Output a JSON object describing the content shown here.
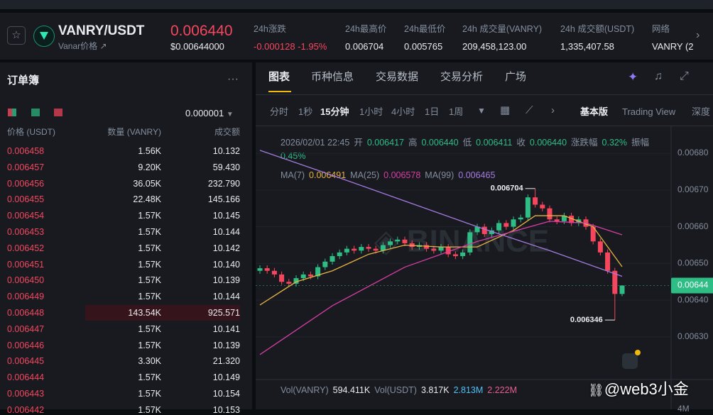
{
  "header": {
    "symbol": "VANRY/USDT",
    "sub": "Vanar价格 ↗",
    "price": "0.006440",
    "price_usd": "$0.00644000",
    "stats": [
      {
        "label": "24h涨跌",
        "value": "-0.000128 -1.95%"
      },
      {
        "label": "24h最高价",
        "value": "0.006704"
      },
      {
        "label": "24h最低价",
        "value": "0.005765"
      },
      {
        "label": "24h 成交量(VANRY)",
        "value": "209,458,123.00"
      },
      {
        "label": "24h 成交额(USDT)",
        "value": "1,335,407.58"
      },
      {
        "label": "网络",
        "value": "VANRY (2"
      }
    ]
  },
  "orderbook": {
    "title": "订单簿",
    "precision": "0.000001",
    "columns": [
      "价格 (USDT)",
      "数量 (VANRY)",
      "成交额"
    ],
    "rows": [
      [
        "0.006458",
        "1.56K",
        "10.132"
      ],
      [
        "0.006457",
        "9.20K",
        "59.430"
      ],
      [
        "0.006456",
        "36.05K",
        "232.790"
      ],
      [
        "0.006455",
        "22.48K",
        "145.166"
      ],
      [
        "0.006454",
        "1.57K",
        "10.145"
      ],
      [
        "0.006453",
        "1.57K",
        "10.144"
      ],
      [
        "0.006452",
        "1.57K",
        "10.142"
      ],
      [
        "0.006451",
        "1.57K",
        "10.140"
      ],
      [
        "0.006450",
        "1.57K",
        "10.139"
      ],
      [
        "0.006449",
        "1.57K",
        "10.144"
      ],
      [
        "0.006448",
        "143.54K",
        "925.571"
      ],
      [
        "0.006447",
        "1.57K",
        "10.141"
      ],
      [
        "0.006446",
        "1.57K",
        "10.139"
      ],
      [
        "0.006445",
        "3.30K",
        "21.320"
      ],
      [
        "0.006444",
        "1.57K",
        "10.149"
      ],
      [
        "0.006443",
        "1.57K",
        "10.154"
      ],
      [
        "0.006442",
        "1.57K",
        "10.153"
      ]
    ]
  },
  "tabs": [
    "图表",
    "币种信息",
    "交易数据",
    "交易分析",
    "广场"
  ],
  "timeframes": [
    "分时",
    "1秒",
    "15分钟",
    "1小时",
    "4小时",
    "1日",
    "1周"
  ],
  "views": [
    "基本版",
    "Trading View",
    "深度"
  ],
  "chart_info": {
    "time": "2026/02/01 22:45",
    "items": [
      {
        "label": "开",
        "value": "0.006417"
      },
      {
        "label": "高",
        "value": "0.006440"
      },
      {
        "label": "低",
        "value": "0.006411"
      },
      {
        "label": "收",
        "value": "0.006440"
      },
      {
        "label": "涨跌幅",
        "value": "0.32%"
      },
      {
        "label": "振幅",
        "value": "0.45%"
      }
    ]
  },
  "chart_data": {
    "type": "candlestick",
    "up_color": "#2ebd85",
    "down_color": "#f6465d",
    "ylim": [
      0.006184,
      0.00686
    ],
    "yticks": [
      {
        "value": 0.0063,
        "label": "0.00630"
      },
      {
        "value": 0.0064,
        "label": "0.00640"
      },
      {
        "value": 0.0065,
        "label": "0.00650"
      },
      {
        "value": 0.0066,
        "label": "0.00660"
      },
      {
        "value": 0.0067,
        "label": "0.00670"
      },
      {
        "value": 0.0068,
        "label": "0.00680"
      }
    ],
    "candles": [
      [
        0.00648,
        0.006495,
        0.006472,
        0.006487
      ],
      [
        0.006487,
        0.006495,
        0.006472,
        0.00648
      ],
      [
        0.00648,
        0.006488,
        0.006462,
        0.00647
      ],
      [
        0.00647,
        0.006478,
        0.006442,
        0.00645
      ],
      [
        0.00645,
        0.006458,
        0.006437,
        0.006445
      ],
      [
        0.006445,
        0.006468,
        0.006437,
        0.00646
      ],
      [
        0.00646,
        0.006478,
        0.006452,
        0.00647
      ],
      [
        0.00647,
        0.006478,
        0.006457,
        0.006465
      ],
      [
        0.006465,
        0.006498,
        0.006457,
        0.00649
      ],
      [
        0.00649,
        0.006513,
        0.006482,
        0.006505
      ],
      [
        0.006505,
        0.006528,
        0.006497,
        0.00652
      ],
      [
        0.00652,
        0.006538,
        0.006512,
        0.00653
      ],
      [
        0.00653,
        0.006548,
        0.006522,
        0.00654
      ],
      [
        0.00654,
        0.006548,
        0.006527,
        0.006535
      ],
      [
        0.006535,
        0.006553,
        0.006527,
        0.006545
      ],
      [
        0.006545,
        0.006553,
        0.006532,
        0.00654
      ],
      [
        0.00654,
        0.006548,
        0.006527,
        0.006535
      ],
      [
        0.006535,
        0.006558,
        0.006527,
        0.00655
      ],
      [
        0.00655,
        0.006568,
        0.006542,
        0.00656
      ],
      [
        0.00656,
        0.006573,
        0.006552,
        0.006565
      ],
      [
        0.006565,
        0.006573,
        0.006547,
        0.006555
      ],
      [
        0.006555,
        0.006563,
        0.006537,
        0.006545
      ],
      [
        0.006545,
        0.006558,
        0.006537,
        0.00655
      ],
      [
        0.00655,
        0.006558,
        0.006532,
        0.00654
      ],
      [
        0.00654,
        0.006548,
        0.006527,
        0.006535
      ],
      [
        0.006535,
        0.006553,
        0.006527,
        0.006545
      ],
      [
        0.006545,
        0.006553,
        0.006517,
        0.006525
      ],
      [
        0.006525,
        0.006533,
        0.006512,
        0.00652
      ],
      [
        0.00652,
        0.006538,
        0.006512,
        0.00653
      ],
      [
        0.00653,
        0.006593,
        0.006522,
        0.006585
      ],
      [
        0.006585,
        0.006608,
        0.006577,
        0.0066
      ],
      [
        0.0066,
        0.006608,
        0.006572,
        0.00658
      ],
      [
        0.00658,
        0.006598,
        0.006572,
        0.00659
      ],
      [
        0.00659,
        0.006618,
        0.006582,
        0.00661
      ],
      [
        0.00661,
        0.006618,
        0.006592,
        0.0066
      ],
      [
        0.0066,
        0.006628,
        0.006592,
        0.00662
      ],
      [
        0.00662,
        0.006633,
        0.006612,
        0.006625
      ],
      [
        0.006625,
        0.006688,
        0.006617,
        0.00668
      ],
      [
        0.00668,
        0.006704,
        0.006652,
        0.00666
      ],
      [
        0.00666,
        0.006668,
        0.006642,
        0.00665
      ],
      [
        0.00665,
        0.006658,
        0.006612,
        0.00662
      ],
      [
        0.00662,
        0.006628,
        0.006607,
        0.006615
      ],
      [
        0.006615,
        0.006638,
        0.006607,
        0.00663
      ],
      [
        0.00663,
        0.006638,
        0.006602,
        0.00661
      ],
      [
        0.00661,
        0.006628,
        0.006602,
        0.00662
      ],
      [
        0.00662,
        0.006628,
        0.006592,
        0.0066
      ],
      [
        0.0066,
        0.006608,
        0.006552,
        0.00656
      ],
      [
        0.00656,
        0.006568,
        0.006522,
        0.00653
      ],
      [
        0.00653,
        0.006538,
        0.006472,
        0.00648
      ],
      [
        0.00648,
        0.006488,
        0.006346,
        0.006417
      ],
      [
        0.006417,
        0.00644,
        0.006411,
        0.00644
      ]
    ],
    "ma_lines": [
      {
        "name": "MA(7)",
        "label_value": "0.006491",
        "color": "#e8b342",
        "x": [
          0,
          5,
          10,
          15,
          20,
          25,
          30,
          35,
          38,
          42,
          46,
          50
        ],
        "values": [
          0.006387,
          0.00645,
          0.00648,
          0.006525,
          0.00655,
          0.006545,
          0.006545,
          0.00659,
          0.00663,
          0.00663,
          0.0066,
          0.006491
        ]
      },
      {
        "name": "MA(25)",
        "label_value": "0.006578",
        "color": "#d63ea3",
        "x": [
          0,
          10,
          20,
          30,
          40,
          45,
          50
        ],
        "values": [
          0.006252,
          0.006385,
          0.00649,
          0.00656,
          0.006615,
          0.00661,
          0.006578
        ]
      },
      {
        "name": "MA(99)",
        "label_value": "0.006465",
        "color": "#a57ae0",
        "x": [
          0,
          10,
          20,
          30,
          40,
          50
        ],
        "values": [
          0.006808,
          0.00674,
          0.00667,
          0.0066,
          0.006535,
          0.006465
        ]
      }
    ],
    "annotations": [
      0.006704,
      0.006346
    ],
    "price_tag": {
      "value": 0.00644,
      "label": "0.00644"
    }
  },
  "volume": {
    "items": [
      {
        "label": "Vol(VANRY)",
        "value": "594.411K"
      },
      {
        "label": "Vol(USDT)",
        "value": "3.817K"
      }
    ],
    "extra": [
      "2.813M",
      "2.222M"
    ],
    "axis": "4M"
  },
  "watermark": "@web3小金"
}
